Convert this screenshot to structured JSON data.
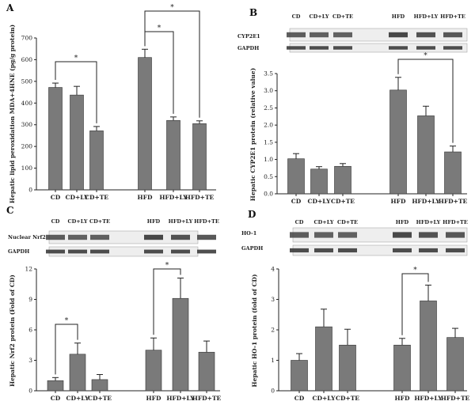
{
  "panels": [
    {
      "label": "A"
    },
    {
      "label": "B",
      "blot_labels": [
        "CYP2E1",
        "GAPDH"
      ],
      "lane_labels": [
        "CD",
        "CD+LY",
        "CD+TE",
        "HFD",
        "HFD+LY",
        "HFD+TE"
      ]
    },
    {
      "label": "C",
      "blot_labels": [
        "Nuclear Nrf2",
        "GAPDH"
      ],
      "lane_labels": [
        "CD",
        "CD+LY",
        "CD+TE",
        "HFD",
        "HFD+LY",
        "HFD+TE"
      ]
    },
    {
      "label": "D",
      "blot_labels": [
        "HO-1",
        "GAPDH"
      ],
      "lane_labels": [
        "CD",
        "CD+LY",
        "CD+TE",
        "HFD",
        "HFD+LY",
        "HFD+TE"
      ]
    }
  ],
  "chart_data": [
    {
      "type": "bar",
      "ylabel": "Hepatic lipid peroxidation MDA+4HNE (pg/g protein)",
      "categories": [
        "CD",
        "CD+LY",
        "CD+TE",
        "HFD",
        "HFD+LY",
        "HFD+TE"
      ],
      "values": [
        472,
        437,
        272,
        610,
        320,
        305
      ],
      "errors": [
        20,
        40,
        20,
        38,
        16,
        13
      ],
      "ylim": [
        0,
        700
      ],
      "yticks": [
        "0",
        "100",
        "200",
        "300",
        "400",
        "500",
        "600",
        "700"
      ],
      "significance": [
        [
          "CD",
          "CD+TE",
          "*"
        ],
        [
          "HFD",
          "HFD+LY",
          "*"
        ],
        [
          "HFD",
          "HFD+TE",
          "*"
        ]
      ]
    },
    {
      "type": "bar",
      "ylabel": "Hepatic CYP2E1 protein (relative value)",
      "categories": [
        "CD",
        "CD+LY",
        "CD+TE",
        "HFD",
        "HFD+LY",
        "HFD+TE"
      ],
      "values": [
        1.02,
        0.72,
        0.8,
        3.02,
        2.27,
        1.22
      ],
      "errors": [
        0.15,
        0.07,
        0.08,
        0.37,
        0.28,
        0.17
      ],
      "ylim": [
        0,
        3.5
      ],
      "yticks": [
        "0.0",
        "0.5",
        "1.0",
        "1.5",
        "2.0",
        "2.5",
        "3.0",
        "3.5"
      ],
      "significance": [
        [
          "HFD",
          "HFD+TE",
          "*"
        ]
      ]
    },
    {
      "type": "bar",
      "ylabel": "Hepatic Nrf2 protein (Fold of CD)",
      "categories": [
        "CD",
        "CD+LY",
        "CD+TE",
        "HFD",
        "HFD+LY",
        "HFD+TE"
      ],
      "values": [
        1.0,
        3.6,
        1.1,
        4.0,
        9.1,
        3.8
      ],
      "errors": [
        0.3,
        1.1,
        0.5,
        1.2,
        2.0,
        1.1
      ],
      "ylim": [
        0,
        12
      ],
      "yticks": [
        "0",
        "3",
        "6",
        "9",
        "12"
      ],
      "significance": [
        [
          "CD",
          "CD+LY",
          "*"
        ],
        [
          "HFD",
          "HFD+LY",
          "*"
        ]
      ]
    },
    {
      "type": "bar",
      "ylabel": "Hepatic HO-1 protein (fold of CD)",
      "categories": [
        "CD",
        "CD+LY",
        "CD+TE",
        "HFD",
        "HFD+LY",
        "HFD+TE"
      ],
      "values": [
        1.0,
        2.1,
        1.5,
        1.5,
        2.95,
        1.75
      ],
      "errors": [
        0.22,
        0.58,
        0.52,
        0.22,
        0.52,
        0.3
      ],
      "ylim": [
        0,
        4
      ],
      "yticks": [
        "0",
        "1",
        "2",
        "3",
        "4"
      ],
      "significance": [
        [
          "HFD",
          "HFD+LY",
          "*"
        ]
      ]
    }
  ]
}
